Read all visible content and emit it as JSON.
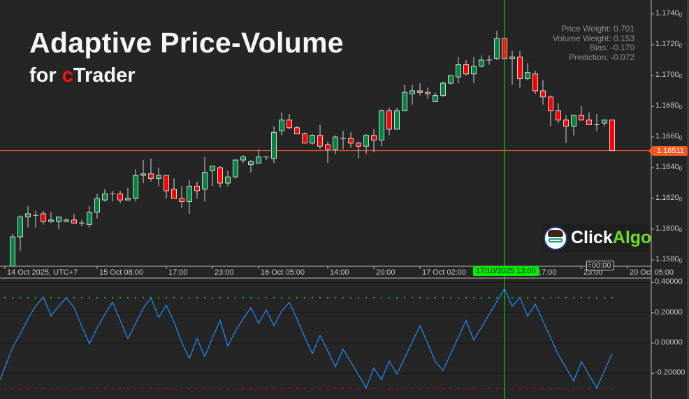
{
  "header": {
    "title": "Adaptive Price-Volume",
    "subtitle_prefix": "for ",
    "subtitle_brand_c": "c",
    "subtitle_brand_rest": "Trader"
  },
  "info_panel": {
    "price_weight": "Price Weight: 0.701",
    "volume_weight": "Volume Weight: 0.153",
    "bias": "Bias: -0.170",
    "prediction": "Prediction: -0.072"
  },
  "logo": {
    "part1": "Click",
    "part2": "Algo",
    "accent_color": "#6fdc2a"
  },
  "current_price_label": "1.16511",
  "crosshair_time_label": "17/10/2025 13:00",
  "time_marker_label": "00:00",
  "colors": {
    "background": "#252525",
    "bull_candle": "#00873d",
    "bear_candle": "#ff0000",
    "candle_outline": "#d4d4d4",
    "current_price_line": "#f05a22",
    "crosshair": "#00ee00",
    "indicator_line": "#1e90ff",
    "upper_threshold": "#00d000",
    "lower_threshold": "#dd0000"
  },
  "chart_data": [
    {
      "type": "candlestick",
      "ylabel": "",
      "ylim": [
        1.1572,
        1.1749
      ],
      "y_ticks": [
        "1.1740",
        "1.1720",
        "1.1700",
        "1.1680",
        "1.1660",
        "1.1640",
        "1.1620",
        "1.1600",
        "1.1580"
      ],
      "y_tick_subscript": "0",
      "x_ticks": [
        "14 Oct 2025, UTC+7",
        "15 Oct 08:00",
        "17:00",
        "23:00",
        "16 Oct 05:00",
        "14:00",
        "20:00",
        "17 Oct 02:00",
        "17:00",
        "23:00",
        "20 Oct 05:00"
      ],
      "grid": false,
      "current_price": 1.16511,
      "crosshair_index": 64,
      "ohlc": [
        [
          1.1576,
          1.1597,
          1.1576,
          1.1595
        ],
        [
          1.1595,
          1.1609,
          1.1586,
          1.1608
        ],
        [
          1.1608,
          1.1615,
          1.1601,
          1.161
        ],
        [
          1.1609,
          1.1612,
          1.1601,
          1.1609
        ],
        [
          1.161,
          1.1612,
          1.1603,
          1.1605
        ],
        [
          1.1605,
          1.1611,
          1.1604,
          1.1606
        ],
        [
          1.1605,
          1.1608,
          1.16,
          1.1608
        ],
        [
          1.1605,
          1.1607,
          1.1605,
          1.1606
        ],
        [
          1.1606,
          1.161,
          1.1604,
          1.1604
        ],
        [
          1.1604,
          1.1606,
          1.1602,
          1.1604
        ],
        [
          1.1603,
          1.1615,
          1.1601,
          1.1611
        ],
        [
          1.1611,
          1.1623,
          1.1607,
          1.162
        ],
        [
          1.1619,
          1.1626,
          1.1618,
          1.1623
        ],
        [
          1.1623,
          1.1625,
          1.1618,
          1.1623
        ],
        [
          1.1623,
          1.1625,
          1.1617,
          1.1619
        ],
        [
          1.1619,
          1.1627,
          1.1619,
          1.162
        ],
        [
          1.162,
          1.1639,
          1.1618,
          1.1635
        ],
        [
          1.1635,
          1.1645,
          1.163,
          1.1636
        ],
        [
          1.1636,
          1.1646,
          1.1631,
          1.1633
        ],
        [
          1.1633,
          1.164,
          1.1628,
          1.1635
        ],
        [
          1.1635,
          1.1635,
          1.162,
          1.1625
        ],
        [
          1.1626,
          1.1633,
          1.162,
          1.162
        ],
        [
          1.162,
          1.1628,
          1.1614,
          1.1618
        ],
        [
          1.1618,
          1.1632,
          1.161,
          1.1628
        ],
        [
          1.1628,
          1.1631,
          1.162,
          1.1625
        ],
        [
          1.1626,
          1.1647,
          1.1618,
          1.1637
        ],
        [
          1.1638,
          1.1641,
          1.1628,
          1.1641
        ],
        [
          1.164,
          1.1641,
          1.1627,
          1.163
        ],
        [
          1.163,
          1.1638,
          1.1628,
          1.1634
        ],
        [
          1.1634,
          1.1645,
          1.1633,
          1.1645
        ],
        [
          1.1645,
          1.1648,
          1.1643,
          1.1647
        ],
        [
          1.1642,
          1.1645,
          1.1637,
          1.1644
        ],
        [
          1.1643,
          1.1652,
          1.1643,
          1.1647
        ],
        [
          1.1647,
          1.1647,
          1.1645,
          1.1647
        ],
        [
          1.1646,
          1.1667,
          1.1643,
          1.1663
        ],
        [
          1.1664,
          1.1676,
          1.1661,
          1.1671
        ],
        [
          1.1671,
          1.1675,
          1.1665,
          1.1666
        ],
        [
          1.1666,
          1.1667,
          1.1662,
          1.1662
        ],
        [
          1.1662,
          1.1663,
          1.1656,
          1.1656
        ],
        [
          1.1656,
          1.1662,
          1.1655,
          1.1661
        ],
        [
          1.1661,
          1.1668,
          1.1652,
          1.1654
        ],
        [
          1.1655,
          1.1657,
          1.1643,
          1.1652
        ],
        [
          1.1652,
          1.1661,
          1.1649,
          1.166
        ],
        [
          1.1659,
          1.1664,
          1.1652,
          1.1659
        ],
        [
          1.1659,
          1.1663,
          1.1653,
          1.1656
        ],
        [
          1.1656,
          1.1657,
          1.1646,
          1.1654
        ],
        [
          1.1654,
          1.1662,
          1.1649,
          1.1661
        ],
        [
          1.1661,
          1.1665,
          1.165,
          1.1658
        ],
        [
          1.1658,
          1.1678,
          1.1654,
          1.1677
        ],
        [
          1.1677,
          1.1679,
          1.1661,
          1.1665
        ],
        [
          1.1665,
          1.1679,
          1.1665,
          1.1677
        ],
        [
          1.1677,
          1.1694,
          1.1677,
          1.1689
        ],
        [
          1.1688,
          1.1694,
          1.1681,
          1.169
        ],
        [
          1.169,
          1.1695,
          1.1687,
          1.1689
        ],
        [
          1.1689,
          1.1692,
          1.1685,
          1.1688
        ],
        [
          1.1683,
          1.1689,
          1.1683,
          1.1687
        ],
        [
          1.1687,
          1.1696,
          1.1686,
          1.1695
        ],
        [
          1.1695,
          1.17,
          1.1694,
          1.17
        ],
        [
          1.1699,
          1.1712,
          1.1695,
          1.1707
        ],
        [
          1.1707,
          1.171,
          1.17,
          1.1701
        ],
        [
          1.1701,
          1.1712,
          1.1695,
          1.1706
        ],
        [
          1.1706,
          1.1713,
          1.1705,
          1.171
        ],
        [
          1.171,
          1.1713,
          1.1707,
          1.171
        ],
        [
          1.1711,
          1.1729,
          1.171,
          1.1724
        ],
        [
          1.1724,
          1.1726,
          1.1711,
          1.1711
        ],
        [
          1.1711,
          1.1716,
          1.1694,
          1.1712
        ],
        [
          1.1712,
          1.1716,
          1.1692,
          1.1698
        ],
        [
          1.1698,
          1.1708,
          1.1697,
          1.1702
        ],
        [
          1.1701,
          1.1703,
          1.1688,
          1.169
        ],
        [
          1.169,
          1.1697,
          1.1681,
          1.1686
        ],
        [
          1.1686,
          1.1687,
          1.1667,
          1.1677
        ],
        [
          1.1677,
          1.1682,
          1.1669,
          1.1671
        ],
        [
          1.1671,
          1.1674,
          1.1656,
          1.1667
        ],
        [
          1.1667,
          1.1674,
          1.1661,
          1.1674
        ],
        [
          1.1674,
          1.168,
          1.1671,
          1.1671
        ],
        [
          1.1671,
          1.1676,
          1.1668,
          1.1668
        ],
        [
          1.1668,
          1.1675,
          1.1664,
          1.1668
        ],
        [
          1.1669,
          1.1671,
          1.1667,
          1.1671
        ],
        [
          1.1671,
          1.1671,
          1.16511,
          1.16511
        ]
      ]
    },
    {
      "type": "line",
      "ylim": [
        -0.42,
        0.42
      ],
      "y_ticks": [
        "0.40000",
        "0.20000",
        "0.00000",
        "-0.20000"
      ],
      "upper_threshold": 0.3,
      "lower_threshold": -0.3,
      "grid": true,
      "values": [
        -0.03,
        0.06,
        0.16,
        0.245,
        0.305,
        0.18,
        0.245,
        0.3,
        0.235,
        0.11,
        -0.005,
        0.1,
        0.19,
        0.27,
        0.15,
        0.03,
        0.13,
        0.23,
        0.3,
        0.17,
        0.25,
        0.14,
        0.005,
        -0.1,
        0.03,
        -0.09,
        0.035,
        0.15,
        -0.02,
        0.08,
        0.16,
        0.235,
        0.13,
        0.22,
        0.115,
        0.21,
        0.27,
        0.16,
        0.04,
        -0.07,
        0.05,
        -0.05,
        -0.157,
        -0.04,
        -0.125,
        -0.21,
        -0.295,
        -0.166,
        -0.242,
        -0.118,
        -0.205,
        -0.099,
        0.008,
        0.114,
        0.0,
        -0.123,
        -0.18,
        -0.07,
        0.04,
        0.15,
        0.02,
        0.105,
        0.19,
        0.275,
        0.36,
        0.243,
        0.303,
        0.177,
        0.258,
        0.146,
        0.035,
        -0.077,
        -0.163,
        -0.25,
        -0.123,
        -0.21,
        -0.297,
        -0.183,
        -0.069
      ]
    }
  ]
}
